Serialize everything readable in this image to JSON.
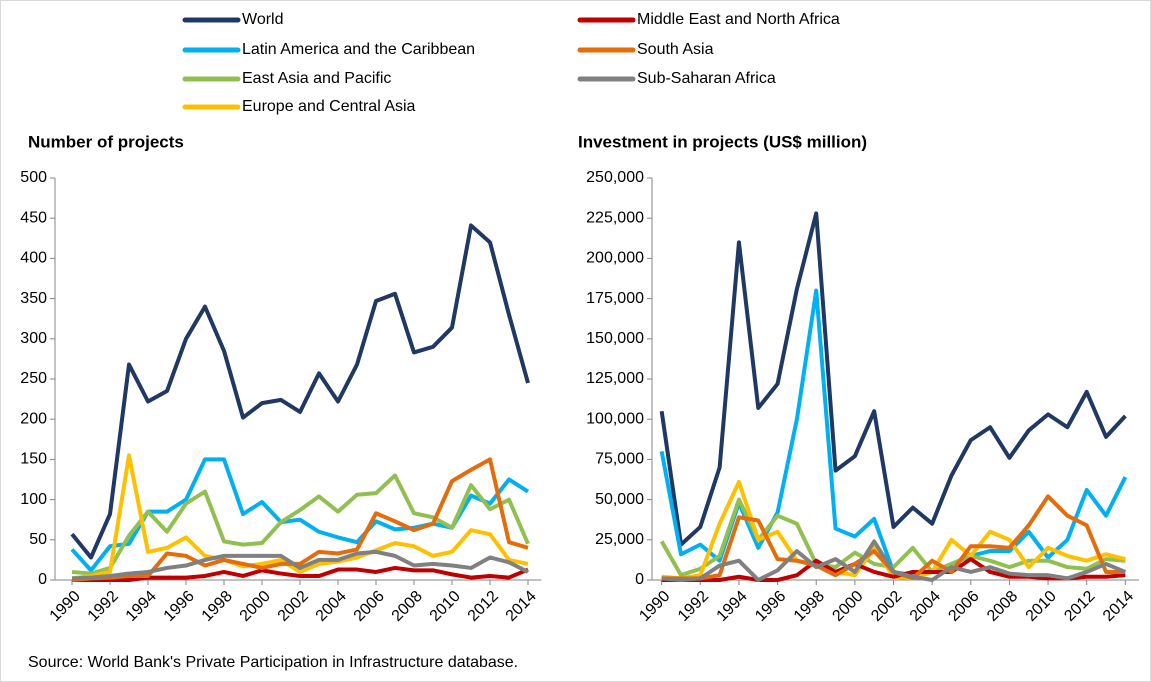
{
  "chart_data": [
    {
      "type": "line",
      "title": "Number of projects",
      "x": [
        1990,
        1991,
        1992,
        1993,
        1994,
        1995,
        1996,
        1997,
        1998,
        1999,
        2000,
        2001,
        2002,
        2003,
        2004,
        2005,
        2006,
        2007,
        2008,
        2009,
        2010,
        2011,
        2012,
        2013,
        2014
      ],
      "xlim": [
        1989.5,
        2014.5
      ],
      "xticks": [
        1990,
        1992,
        1994,
        1996,
        1998,
        2000,
        2002,
        2004,
        2006,
        2008,
        2010,
        2012,
        2014
      ],
      "ylim": [
        0,
        500
      ],
      "yticks": [
        0,
        50,
        100,
        150,
        200,
        250,
        300,
        350,
        400,
        450,
        500
      ],
      "series": [
        {
          "name": "World",
          "color": "#1f3864",
          "values": [
            57,
            28,
            82,
            268,
            222,
            235,
            300,
            340,
            285,
            202,
            220,
            224,
            209,
            257,
            222,
            268,
            347,
            356,
            283,
            290,
            314,
            441,
            420,
            330,
            245
          ]
        },
        {
          "name": "Latin America and the Caribbean",
          "color": "#00b0f0",
          "values": [
            38,
            12,
            42,
            45,
            85,
            85,
            100,
            150,
            150,
            82,
            97,
            72,
            75,
            60,
            53,
            47,
            73,
            63,
            65,
            70,
            65,
            105,
            95,
            125,
            110
          ]
        },
        {
          "name": "East Asia and Pacific",
          "color": "#92c050",
          "values": [
            10,
            8,
            15,
            55,
            85,
            60,
            95,
            110,
            48,
            44,
            46,
            72,
            87,
            104,
            85,
            106,
            108,
            130,
            83,
            78,
            65,
            118,
            88,
            100,
            45
          ]
        },
        {
          "name": "Europe and Central Asia",
          "color": "#ffc000",
          "values": [
            2,
            5,
            10,
            155,
            35,
            40,
            53,
            30,
            25,
            17,
            20,
            25,
            10,
            20,
            23,
            28,
            37,
            46,
            42,
            30,
            35,
            62,
            57,
            25,
            20
          ]
        },
        {
          "name": "Middle East and North Africa",
          "color": "#c00000",
          "values": [
            0,
            0,
            0,
            0,
            3,
            3,
            3,
            5,
            10,
            5,
            12,
            8,
            5,
            5,
            13,
            13,
            10,
            15,
            12,
            12,
            7,
            3,
            5,
            3,
            13
          ]
        },
        {
          "name": "South Asia",
          "color": "#e46c0a",
          "values": [
            0,
            2,
            3,
            5,
            5,
            33,
            30,
            18,
            25,
            20,
            15,
            20,
            20,
            35,
            33,
            38,
            83,
            73,
            62,
            70,
            123,
            137,
            150,
            47,
            40
          ]
        },
        {
          "name": "Sub-Saharan Africa",
          "color": "#808080",
          "values": [
            2,
            3,
            5,
            8,
            10,
            15,
            18,
            25,
            30,
            30,
            30,
            30,
            15,
            25,
            25,
            33,
            35,
            30,
            18,
            20,
            18,
            15,
            28,
            22,
            10
          ]
        }
      ]
    },
    {
      "type": "line",
      "title": "Investment in projects (US$ million)",
      "x": [
        1990,
        1991,
        1992,
        1993,
        1994,
        1995,
        1996,
        1997,
        1998,
        1999,
        2000,
        2001,
        2002,
        2003,
        2004,
        2005,
        2006,
        2007,
        2008,
        2009,
        2010,
        2011,
        2012,
        2013,
        2014
      ],
      "xlim": [
        1989.5,
        2014.5
      ],
      "xticks": [
        1990,
        1992,
        1994,
        1996,
        1998,
        2000,
        2002,
        2004,
        2006,
        2008,
        2010,
        2012,
        2014
      ],
      "ylim": [
        0,
        250000
      ],
      "yticks": [
        0,
        {
          "value": 25000,
          "label": "25,000"
        },
        {
          "value": 50000,
          "label": "50,000"
        },
        {
          "value": 75000,
          "label": "75,000"
        },
        {
          "value": 100000,
          "label": "100,000"
        },
        {
          "value": 125000,
          "label": "125,000"
        },
        {
          "value": 150000,
          "label": "150,000"
        },
        {
          "value": 175000,
          "label": "175,000"
        },
        {
          "value": 200000,
          "label": "200,000"
        },
        {
          "value": 225000,
          "label": "225,000"
        },
        {
          "value": 250000,
          "label": "250,000"
        }
      ],
      "series": [
        {
          "name": "World",
          "color": "#1f3864",
          "values": [
            105000,
            22000,
            33000,
            70000,
            210000,
            107000,
            122000,
            181000,
            228000,
            68000,
            77000,
            105000,
            33000,
            45000,
            35000,
            65000,
            87000,
            95000,
            76000,
            93000,
            103000,
            95000,
            117000,
            89000,
            102000
          ]
        },
        {
          "name": "Latin America and the Caribbean",
          "color": "#00b0f0",
          "values": [
            80000,
            16000,
            22000,
            12000,
            48000,
            20000,
            42000,
            100000,
            180000,
            32000,
            27000,
            38000,
            5000,
            3000,
            5000,
            10000,
            15000,
            18000,
            18000,
            30000,
            14000,
            25000,
            56000,
            40000,
            64000
          ]
        },
        {
          "name": "East Asia and Pacific",
          "color": "#92c050",
          "values": [
            24000,
            3000,
            7000,
            15000,
            50000,
            25000,
            40000,
            35000,
            10000,
            8000,
            17000,
            10000,
            8000,
            20000,
            5000,
            10000,
            15000,
            12000,
            8000,
            12000,
            12000,
            8000,
            7000,
            13000,
            12000
          ]
        },
        {
          "name": "Europe and Central Asia",
          "color": "#ffc000",
          "values": [
            2000,
            1000,
            3000,
            35000,
            61000,
            25000,
            30000,
            12000,
            10000,
            5000,
            3000,
            20000,
            2000,
            1000,
            5000,
            25000,
            15000,
            30000,
            25000,
            8000,
            20000,
            15000,
            12000,
            16000,
            13000
          ]
        },
        {
          "name": "Middle East and North Africa",
          "color": "#c00000",
          "values": [
            0,
            0,
            0,
            0,
            2000,
            0,
            0,
            3000,
            12000,
            5000,
            10000,
            5000,
            2000,
            5000,
            5000,
            5000,
            13000,
            5000,
            2000,
            2000,
            1000,
            1000,
            2000,
            2000,
            3000
          ]
        },
        {
          "name": "South Asia",
          "color": "#e46c0a",
          "values": [
            1000,
            1000,
            1000,
            3000,
            39000,
            37000,
            13000,
            12000,
            9000,
            3000,
            10000,
            18000,
            5000,
            1000,
            12000,
            5000,
            21000,
            21000,
            20000,
            34000,
            52000,
            40000,
            34000,
            5000,
            5000
          ]
        },
        {
          "name": "Sub-Saharan Africa",
          "color": "#808080",
          "values": [
            1000,
            0,
            1000,
            9000,
            12000,
            0,
            6000,
            18000,
            8000,
            13000,
            5000,
            24000,
            5000,
            2000,
            0,
            8000,
            5000,
            8000,
            4000,
            3000,
            3000,
            1000,
            5000,
            10000,
            5000
          ]
        }
      ]
    }
  ],
  "source": "Source: World Bank's Private Participation in Infrastructure database."
}
